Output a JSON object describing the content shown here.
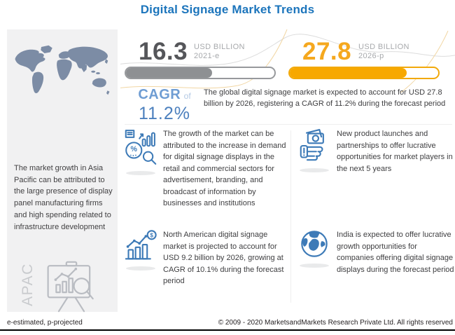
{
  "title": "Digital Signage Market Trends",
  "chart_data": {
    "type": "bar",
    "title": "Digital Signage Market Trends",
    "categories": [
      "2021-e",
      "2026-p"
    ],
    "values": [
      16.3,
      27.8
    ],
    "unit": "USD Billion",
    "cagr_percent": 11.2,
    "bar_fill_percents": [
      58,
      79
    ],
    "annotations": [
      "Global market expected to reach USD 27.8 billion by 2026 at CAGR of 11.2%",
      "North American market projected at USD 9.2 billion by 2026, CAGR 10.1%"
    ],
    "legend_note": "e-estimated, p-projected"
  },
  "left_panel": {
    "region_label": "APAC",
    "text": "The market growth in Asia Pacific can be attributed to the large presence of display panel manufacturing firms and high spending related to infrastructure development",
    "map_icon": "world-map",
    "board_icon": "presentation-chart-icon"
  },
  "stats": [
    {
      "value": "16.3",
      "unit": "USD BILLION",
      "year": "2021-e",
      "fill_pct": 58,
      "bar_color": "#8E9093"
    },
    {
      "value": "27.8",
      "unit": "USD BILLION",
      "year": "2026-p",
      "fill_pct": 79,
      "bar_color": "#F7A800"
    }
  ],
  "cagr": {
    "label": "CAGR",
    "of": "of",
    "value": "11.2%"
  },
  "summary": "The global digital signage market is expected to account for USD 27.8 billion by 2026, registering a CAGR of 11.2% during the forecast period",
  "insights": [
    {
      "icon": "market-growth-analysis-icon",
      "text": "The growth of the market can be attributed to the increase in demand for digital signage displays in the retail and commercial sectors for advertisement, branding, and broadcast of information by businesses and institutions"
    },
    {
      "icon": "money-hand-icon",
      "text": "New product launches and partnerships to offer lucrative opportunities for market players in the next 5 years"
    },
    {
      "icon": "growth-bar-chart-icon",
      "text": "North American digital signage market is projected to account for USD 9.2 billion by 2026, growing at CAGR of 10.1% during the forecast period"
    },
    {
      "icon": "globe-icon",
      "text": "India is expected to offer lucrative growth opportunities for companies offering digital signage displays during the forecast period"
    }
  ],
  "footer": {
    "note": "e-estimated, p-projected",
    "copyright": "© 2009 - 2020 MarketsandMarkets Research Private Ltd. All rights reserved"
  },
  "colors": {
    "title_blue": "#1C75BC",
    "stat_gray": "#55565A",
    "stat_yellow": "#F5A81E",
    "bar_yellow": "#F7A800",
    "bar_gray": "#8E9093",
    "cagr_blue": "#4C80BE",
    "icon_blue": "#3D7AB7",
    "map_gray": "#7C8CA5",
    "panel_bg": "#F1F1F2"
  }
}
